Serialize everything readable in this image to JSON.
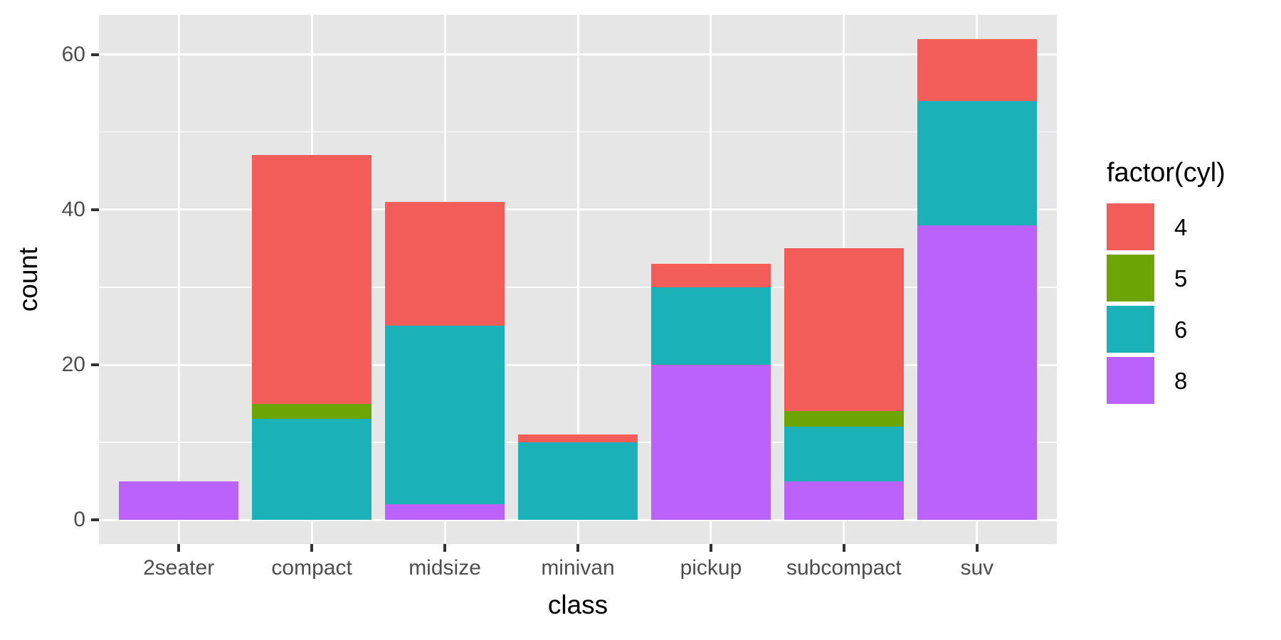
{
  "chart_data": {
    "type": "bar",
    "stacked": true,
    "title": "",
    "xlabel": "class",
    "ylabel": "count",
    "categories": [
      "2seater",
      "compact",
      "midsize",
      "minivan",
      "pickup",
      "subcompact",
      "suv"
    ],
    "series": [
      {
        "name": "4",
        "color": "#F25D5A",
        "values": [
          0,
          32,
          16,
          1,
          3,
          21,
          8
        ]
      },
      {
        "name": "5",
        "color": "#6DA604",
        "values": [
          0,
          2,
          0,
          0,
          0,
          2,
          0
        ]
      },
      {
        "name": "6",
        "color": "#1AB2B8",
        "values": [
          0,
          13,
          23,
          10,
          10,
          7,
          16
        ]
      },
      {
        "name": "8",
        "color": "#BC62FC",
        "values": [
          5,
          0,
          2,
          0,
          20,
          5,
          38
        ]
      }
    ],
    "stack_order_bottom_to_top": [
      "8",
      "6",
      "5",
      "4"
    ],
    "totals": [
      5,
      47,
      41,
      11,
      33,
      35,
      62
    ],
    "y_axis": {
      "ticks": [
        0,
        20,
        40,
        60
      ],
      "tick_labels": [
        "0",
        "20",
        "40",
        "60"
      ],
      "minor_ticks": [
        10,
        30,
        50
      ],
      "limits": [
        0,
        62
      ]
    },
    "legend": {
      "title": "factor(cyl)",
      "position": "right",
      "entries": [
        {
          "label": "4",
          "color": "#F25D5A"
        },
        {
          "label": "5",
          "color": "#6DA604"
        },
        {
          "label": "6",
          "color": "#1AB2B8"
        },
        {
          "label": "8",
          "color": "#BC62FC"
        }
      ]
    },
    "grid": true,
    "style": {
      "background": "#FFFFFF",
      "panel_bg": "#E6E6E6",
      "grid_color": "#FFFFFF",
      "tick_label_color": "#4D4D4D",
      "tick_mark_color": "#333333",
      "axis_title_color": "#000000"
    }
  }
}
